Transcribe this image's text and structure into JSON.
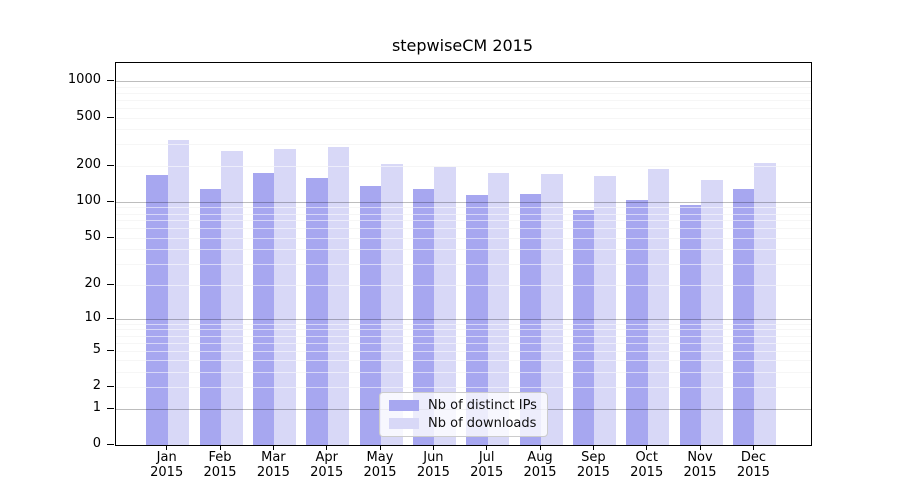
{
  "chart_data": {
    "type": "bar",
    "title": "stepwiseCM 2015",
    "categories": [
      "Jan",
      "Feb",
      "Mar",
      "Apr",
      "May",
      "Jun",
      "Jul",
      "Aug",
      "Sep",
      "Oct",
      "Nov",
      "Dec"
    ],
    "category_year": "2015",
    "series": [
      {
        "name": "Nb of distinct IPs",
        "color": "#a7a7f0",
        "values": [
          166,
          127,
          175,
          159,
          135,
          128,
          114,
          117,
          86,
          104,
          95,
          128
        ]
      },
      {
        "name": "Nb of downloads",
        "color": "#d8d8f7",
        "values": [
          327,
          264,
          273,
          285,
          207,
          196,
          175,
          169,
          163,
          187,
          153,
          210
        ]
      }
    ],
    "yscale": "log10(1+y)",
    "y_tick_values": [
      0,
      1,
      2,
      5,
      10,
      20,
      50,
      100,
      200,
      500,
      1000
    ],
    "major_grid_values": [
      1,
      10,
      100,
      1000
    ],
    "ylim": [
      0,
      1410
    ],
    "grid": true,
    "legend": {
      "position": "lower center",
      "entries": [
        "Nb of distinct IPs",
        "Nb of downloads"
      ]
    },
    "colors": {
      "axis": "#000000",
      "minor_grid": "#ececec",
      "major_grid": "#bdbdbd",
      "background": "#ffffff"
    }
  }
}
